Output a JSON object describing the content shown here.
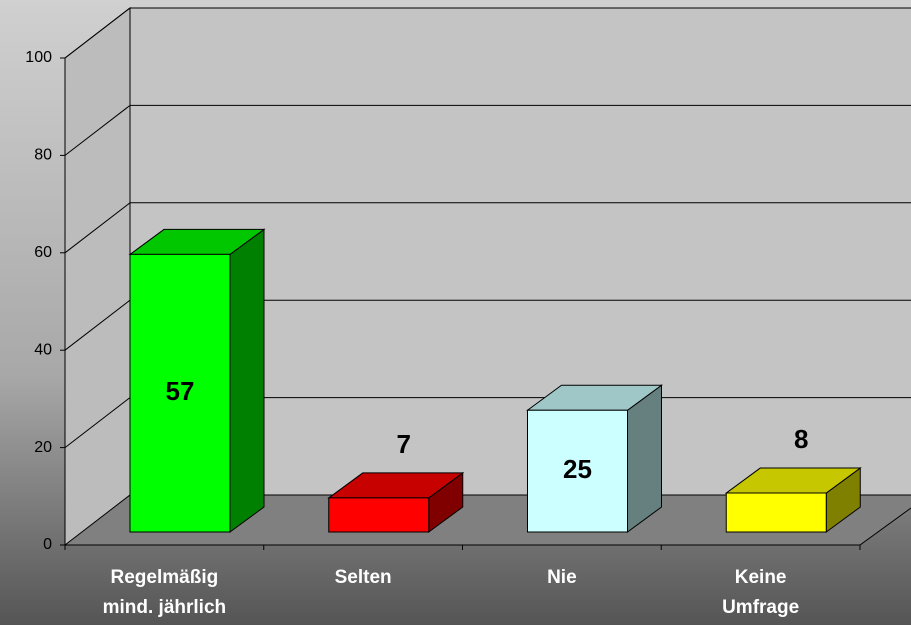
{
  "chart_data": {
    "type": "bar3d",
    "categories": [
      "Regelmäßig\nmind. jährlich",
      "Selten",
      "Nie",
      "Keine\nUmfrage"
    ],
    "values": [
      57,
      7,
      25,
      8
    ],
    "colors": [
      "#00ff00",
      "#ff0000",
      "#ccffff",
      "#ffff00"
    ],
    "ylim": [
      0,
      100
    ],
    "yticks": [
      0,
      20,
      40,
      60,
      80,
      100
    ],
    "grid": true
  }
}
